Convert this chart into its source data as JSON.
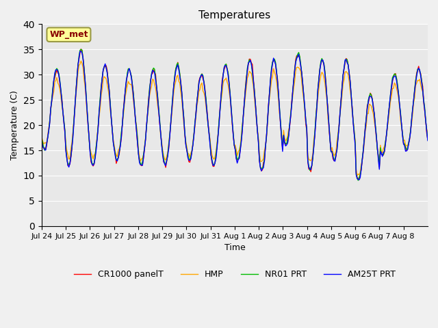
{
  "title": "Temperatures",
  "xlabel": "Time",
  "ylabel": "Temperature (C)",
  "ylim": [
    0,
    40
  ],
  "yticks": [
    0,
    5,
    10,
    15,
    20,
    25,
    30,
    35,
    40
  ],
  "x_labels": [
    "Jul 24",
    "Jul 25",
    "Jul 26",
    "Jul 27",
    "Jul 28",
    "Jul 29",
    "Jul 30",
    "Jul 31",
    "Aug 1",
    "Aug 2",
    "Aug 3",
    "Aug 4",
    "Aug 5",
    "Aug 6",
    "Aug 7",
    "Aug 8"
  ],
  "legend_labels": [
    "CR1000 panelT",
    "HMP",
    "NR01 PRT",
    "AM25T PRT"
  ],
  "legend_colors": [
    "#ff0000",
    "#ffa500",
    "#00bb00",
    "#0000ff"
  ],
  "wp_met_label": "WP_met",
  "fig_facecolor": "#f0f0f0",
  "plot_bg_color": "#e8e8e8",
  "title_fontsize": 11,
  "annotation_box_facecolor": "#ffff99",
  "annotation_box_edgecolor": "#999944",
  "annotation_text_color": "#880000",
  "n_days": 16,
  "n_per_day": 24,
  "base_mins": [
    15,
    12,
    12,
    13,
    12,
    12,
    13,
    12,
    13,
    11,
    16,
    11,
    13,
    9,
    14,
    15
  ],
  "base_maxs": [
    31,
    35,
    32,
    31,
    31,
    32,
    30,
    32,
    33,
    33,
    34,
    33,
    33,
    26,
    30,
    31
  ]
}
